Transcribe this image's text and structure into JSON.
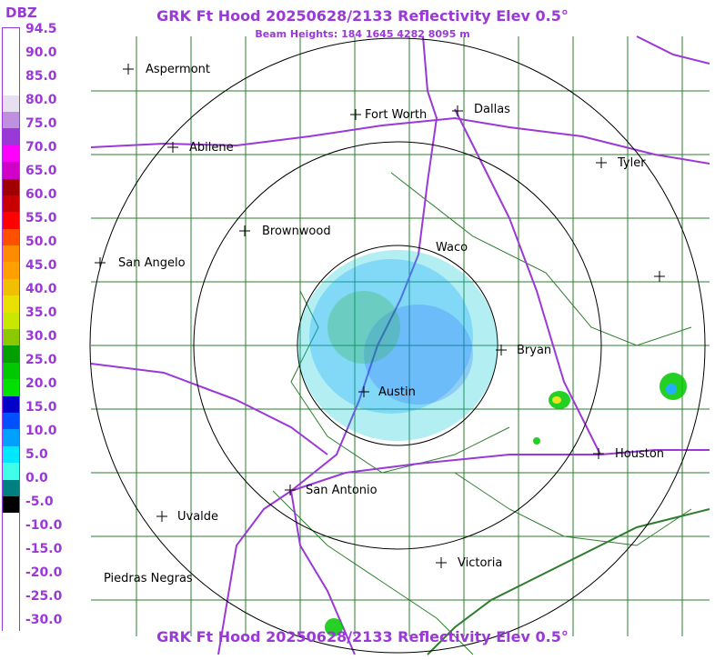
{
  "header": {
    "title": "GRK Ft Hood 20250628/2133 Reflectivity Elev 0.5°",
    "subtitle": "Beam Heights: 184 1645 4282 8095 m",
    "footer": "GRK Ft Hood 20250628/2133 Reflectivity Elev 0.5°"
  },
  "legend": {
    "title": "DBZ",
    "ticks": [
      "94.5",
      "90.0",
      "85.0",
      "80.0",
      "75.0",
      "70.0",
      "65.0",
      "60.0",
      "55.0",
      "50.0",
      "45.0",
      "40.0",
      "35.0",
      "30.0",
      "25.0",
      "20.0",
      "15.0",
      "10.0",
      "5.0",
      "0.0",
      "-5.0",
      "-10.0",
      "-15.0",
      "-20.0",
      "-25.0",
      "-30.0"
    ],
    "colors": [
      "#ffffff",
      "#ffffff",
      "#ffffff",
      "#ffffff",
      "#e8e0f0",
      "#c090e0",
      "#9a38d8",
      "#ff00ff",
      "#d000c8",
      "#a00000",
      "#c80000",
      "#ff0000",
      "#ff5000",
      "#ff8c00",
      "#ffa000",
      "#f0c000",
      "#e8e000",
      "#c8e800",
      "#8cc800",
      "#00a000",
      "#00c800",
      "#00e000",
      "#0000c8",
      "#0050ff",
      "#00a0ff",
      "#00e8ff",
      "#40ffe8",
      "#008080",
      "#000000",
      "#ffffff",
      "#ffffff",
      "#ffffff",
      "#ffffff",
      "#ffffff",
      "#ffffff",
      "#ffffff"
    ]
  },
  "cities": [
    {
      "name": "Aspermont",
      "label": "Aspermont"
    },
    {
      "name": "Abilene",
      "label": "Abilene"
    },
    {
      "name": "Fort Worth",
      "label": "Fort Worth"
    },
    {
      "name": "Dallas",
      "label": "Dallas"
    },
    {
      "name": "Tyler",
      "label": "Tyler"
    },
    {
      "name": "Brownwood",
      "label": "Brownwood"
    },
    {
      "name": "Waco",
      "label": "Waco"
    },
    {
      "name": "San Angelo",
      "label": "San Angelo"
    },
    {
      "name": "Bryan",
      "label": "Bryan"
    },
    {
      "name": "Austin",
      "label": "Austin"
    },
    {
      "name": "Houston",
      "label": "Houston"
    },
    {
      "name": "San Antonio",
      "label": "San Antonio"
    },
    {
      "name": "Uvalde",
      "label": "Uvalde"
    },
    {
      "name": "Victoria",
      "label": "Victoria"
    },
    {
      "name": "Piedras Negras",
      "label": "Piedras Negras"
    }
  ],
  "colors": {
    "text_accent": "#9a38d8",
    "county_lines": "#2e7d2e",
    "highways": "#9a38d8",
    "range_rings": "#000000"
  }
}
